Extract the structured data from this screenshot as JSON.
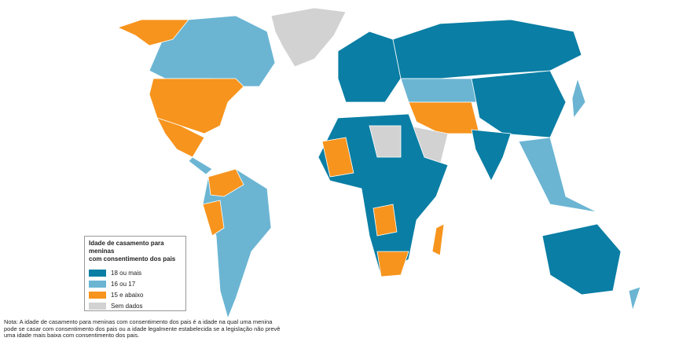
{
  "legend": {
    "title_lines": [
      "Idade de casamento para meninas",
      "com consentimento dos pais"
    ],
    "items": [
      {
        "label": "18 ou mais",
        "color": "#0a7ea4"
      },
      {
        "label": "16 ou 17",
        "color": "#6bb5d3"
      },
      {
        "label": "15 e abaixo",
        "color": "#f7941d"
      },
      {
        "label": "Sem dados",
        "color": "#d2d2d2"
      }
    ]
  },
  "note": {
    "lines": [
      "Nota: A idade de casamento para meninas com consentimento dos pais é a idade na qual uma menina",
      "pode se casar com consentimento dos pais ou a idade legalmente estabelecida se a legislação não prevê",
      "uma idade mais baixa com consentimento dos pais."
    ]
  }
}
